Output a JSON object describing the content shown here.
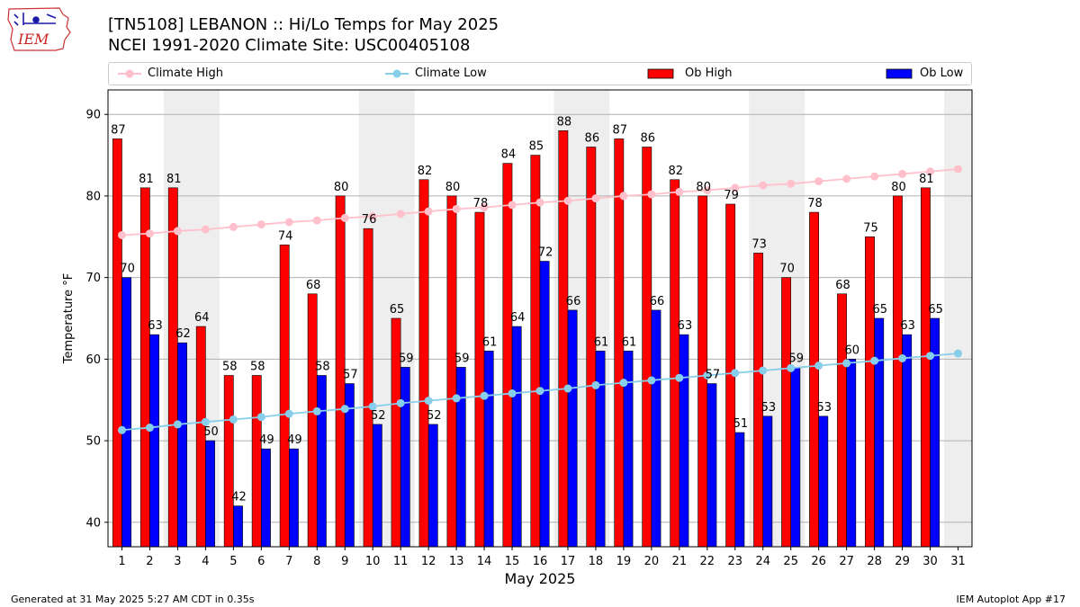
{
  "header": {
    "logo_text": "IEM",
    "title_line1": "[TN5108] LEBANON :: Hi/Lo Temps for May 2025",
    "title_line2": "NCEI 1991-2020 Climate Site: USC00405108"
  },
  "footer": {
    "generated": "Generated at 31 May 2025 5:27 AM CDT in 0.35s",
    "app": "IEM Autoplot App #17"
  },
  "colors": {
    "ob_high": "#ff0000",
    "ob_low": "#0000ff",
    "climate_high": "#ffc0cb",
    "climate_low": "#87ceeb",
    "weekend_shade": "#eeeeee",
    "grid": "#b0b0b0"
  },
  "chart_data": {
    "type": "bar",
    "xlabel": "May 2025",
    "ylabel": "Temperature °F",
    "ylim": [
      37,
      93
    ],
    "yticks": [
      40,
      50,
      60,
      70,
      80,
      90
    ],
    "grid": "horizontal",
    "legend_placement": "top",
    "categories": [
      "1",
      "2",
      "3",
      "4",
      "5",
      "6",
      "7",
      "8",
      "9",
      "10",
      "11",
      "12",
      "13",
      "14",
      "15",
      "16",
      "17",
      "18",
      "19",
      "20",
      "21",
      "22",
      "23",
      "24",
      "25",
      "26",
      "27",
      "28",
      "29",
      "30",
      "31"
    ],
    "shaded_days": [
      3,
      4,
      10,
      11,
      17,
      18,
      24,
      25,
      31
    ],
    "legend": [
      "Climate High",
      "Climate Low",
      "Ob High",
      "Ob Low"
    ],
    "series": [
      {
        "name": "Ob High",
        "type": "bar",
        "values": [
          87,
          81,
          81,
          64,
          58,
          58,
          74,
          68,
          80,
          76,
          65,
          82,
          80,
          78,
          84,
          85,
          88,
          86,
          87,
          86,
          82,
          80,
          79,
          73,
          70,
          78,
          68,
          75,
          80,
          81,
          null
        ]
      },
      {
        "name": "Ob Low",
        "type": "bar",
        "values": [
          70,
          63,
          62,
          50,
          42,
          49,
          49,
          58,
          57,
          52,
          59,
          52,
          59,
          61,
          64,
          72,
          66,
          61,
          61,
          66,
          63,
          57,
          51,
          53,
          59,
          53,
          60,
          65,
          63,
          65,
          null
        ]
      },
      {
        "name": "Climate High",
        "type": "line",
        "values": [
          75.2,
          75.4,
          75.7,
          75.9,
          76.2,
          76.5,
          76.8,
          77.0,
          77.3,
          77.5,
          77.8,
          78.1,
          78.4,
          78.6,
          78.9,
          79.2,
          79.4,
          79.7,
          80.0,
          80.2,
          80.5,
          80.7,
          81.0,
          81.3,
          81.5,
          81.8,
          82.1,
          82.4,
          82.7,
          83.0,
          83.3
        ]
      },
      {
        "name": "Climate Low",
        "type": "line",
        "values": [
          51.3,
          51.6,
          52.0,
          52.3,
          52.6,
          52.9,
          53.3,
          53.6,
          53.9,
          54.2,
          54.6,
          54.9,
          55.2,
          55.5,
          55.8,
          56.1,
          56.4,
          56.8,
          57.1,
          57.4,
          57.7,
          58.0,
          58.3,
          58.6,
          58.9,
          59.2,
          59.5,
          59.8,
          60.1,
          60.4,
          60.7
        ]
      }
    ]
  }
}
